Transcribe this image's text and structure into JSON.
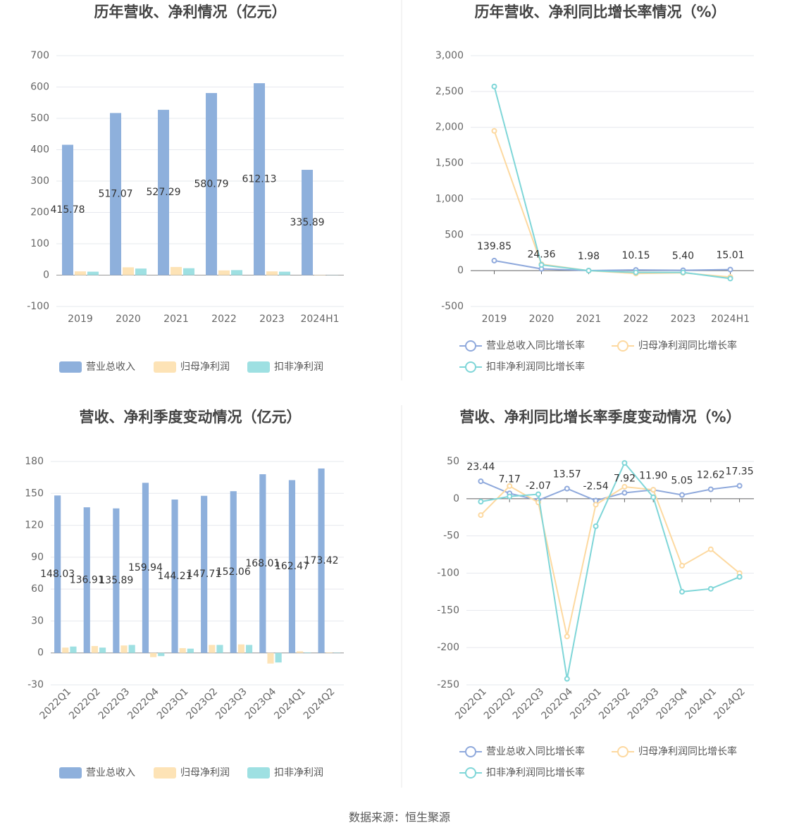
{
  "chart_data": [
    {
      "type": "bar",
      "title": "历年营收、净利情况（亿元）",
      "categories": [
        "2019",
        "2020",
        "2021",
        "2022",
        "2023",
        "2024H1"
      ],
      "series": [
        {
          "name": "营业总收入",
          "color": "#8eb0dc",
          "show_labels": true,
          "values": [
            415.78,
            517.07,
            527.29,
            580.79,
            612.13,
            335.89
          ]
        },
        {
          "name": "归母净利润",
          "color": "#fde3b6",
          "values": [
            12,
            25,
            26,
            15,
            12,
            1
          ]
        },
        {
          "name": "扣非净利润",
          "color": "#9ee0e2",
          "values": [
            11,
            21,
            22,
            16,
            11,
            0.5
          ]
        }
      ],
      "ylim": [
        -100,
        700
      ],
      "yticks": [
        -100,
        0,
        100,
        200,
        300,
        400,
        500,
        600,
        700
      ],
      "grid": true
    },
    {
      "type": "line",
      "title": "历年营收、净利同比增长率情况（%）",
      "categories": [
        "2019",
        "2020",
        "2021",
        "2022",
        "2023",
        "2024H1"
      ],
      "series": [
        {
          "name": "营业总收入同比增长率",
          "color": "#8fa9dc",
          "show_labels": true,
          "values": [
            139.85,
            24.36,
            1.98,
            10.15,
            5.4,
            15.01
          ],
          "value_labels": [
            "139.85",
            "24.36",
            "1.98",
            "10.15",
            "5.40",
            "15.01"
          ]
        },
        {
          "name": "归母净利润同比增长率",
          "color": "#fdd9a0",
          "values": [
            1950,
            90,
            0,
            -40,
            -30,
            -90
          ]
        },
        {
          "name": "扣非净利润同比增长率",
          "color": "#7fd6d8",
          "values": [
            2570,
            80,
            0,
            -25,
            -25,
            -110
          ]
        }
      ],
      "ylim": [
        -500,
        3000
      ],
      "yticks": [
        -500,
        0,
        500,
        {
          "value": 1000,
          "label": "1,000"
        },
        {
          "value": 1500,
          "label": "1,500"
        },
        {
          "value": 2000,
          "label": "2,000"
        },
        {
          "value": 2500,
          "label": "2,500"
        },
        {
          "value": 3000,
          "label": "3,000"
        }
      ],
      "grid": true
    },
    {
      "type": "bar",
      "title": "营收、净利季度变动情况（亿元）",
      "categories": [
        "2022Q1",
        "2022Q2",
        "2022Q3",
        "2022Q4",
        "2023Q1",
        "2023Q2",
        "2023Q3",
        "2023Q4",
        "2024Q1",
        "2024Q2"
      ],
      "series": [
        {
          "name": "营业总收入",
          "color": "#8eb0dc",
          "show_labels": true,
          "values": [
            148.03,
            136.91,
            135.89,
            159.94,
            144.21,
            147.71,
            152.06,
            168.01,
            162.47,
            173.42
          ]
        },
        {
          "name": "归母净利润",
          "color": "#fde3b6",
          "values": [
            5,
            6.5,
            7,
            -4,
            4.5,
            7.5,
            8,
            -10,
            1.5,
            0.5
          ]
        },
        {
          "name": "扣非净利润",
          "color": "#9ee0e2",
          "values": [
            6,
            5,
            7.5,
            -3,
            4,
            7.5,
            7.5,
            -9,
            0.5,
            0.3
          ]
        }
      ],
      "ylim": [
        -30,
        180
      ],
      "yticks": [
        -30,
        0,
        30,
        60,
        90,
        120,
        150,
        180
      ],
      "grid": true
    },
    {
      "type": "line",
      "title": "营收、净利同比增长率季度变动情况（%）",
      "categories": [
        "2022Q1",
        "2022Q2",
        "2022Q3",
        "2022Q4",
        "2023Q1",
        "2023Q2",
        "2023Q3",
        "2023Q4",
        "2024Q1",
        "2024Q2"
      ],
      "series": [
        {
          "name": "营业总收入同比增长率",
          "color": "#8fa9dc",
          "show_labels": true,
          "values": [
            23.44,
            7.17,
            -2.07,
            13.57,
            -2.54,
            7.92,
            11.9,
            5.05,
            12.62,
            17.35
          ],
          "value_labels": [
            "23.44",
            "7.17",
            "-2.07",
            "13.57",
            "-2.54",
            "7.92",
            "11.90",
            "5.05",
            "12.62",
            "17.35"
          ]
        },
        {
          "name": "归母净利润同比增长率",
          "color": "#fdd9a0",
          "values": [
            -22,
            17,
            -5,
            -185,
            -8,
            16,
            12,
            -90,
            -68,
            -100
          ]
        },
        {
          "name": "扣非净利润同比增长率",
          "color": "#7fd6d8",
          "values": [
            -4,
            3,
            6,
            -242,
            -37,
            48,
            2,
            -125,
            -121,
            -105
          ]
        }
      ],
      "ylim": [
        -250,
        50
      ],
      "yticks": [
        -250,
        -200,
        -150,
        -100,
        -50,
        0,
        50
      ],
      "grid": true
    }
  ],
  "source": "数据来源：恒生聚源"
}
